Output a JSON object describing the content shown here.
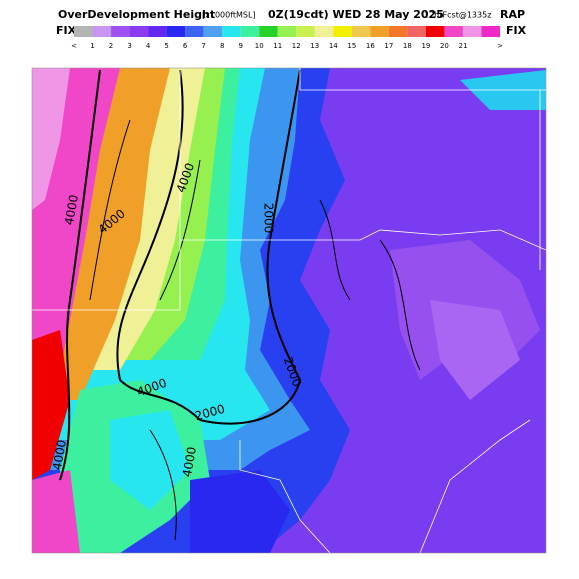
{
  "header": {
    "title": "OverDevelopment Height",
    "units": "[x1000ftMSL]",
    "time": "0Z(19cdt) WED 28 May 2025",
    "forecast": "12hrFcst@1335z",
    "model": "RAP"
  },
  "colorbar": {
    "left": "FIX",
    "right": "FIX",
    "under": "<",
    "over": ">",
    "labels": [
      "1",
      "2",
      "3",
      "4",
      "5",
      "6",
      "7",
      "8",
      "9",
      "10",
      "11",
      "12",
      "13",
      "14",
      "15",
      "16",
      "17",
      "18",
      "19",
      "20",
      "21"
    ],
    "colors": [
      "#b4b4b4",
      "#c896f0",
      "#a050f0",
      "#8c3cf0",
      "#6428f0",
      "#2828f0",
      "#3c64f0",
      "#50a0f0",
      "#28e6f0",
      "#3cf0a0",
      "#28d228",
      "#96f050",
      "#c8f050",
      "#f0f096",
      "#f0f000",
      "#f0c850",
      "#f0a028",
      "#f07828",
      "#f06464",
      "#f00000",
      "#f046c8",
      "#f096e6",
      "#f028c8"
    ]
  },
  "contour_labels": [
    "4000",
    "4000",
    "4000",
    "2000",
    "4000",
    "2000",
    "2000",
    "4000",
    "4000"
  ]
}
